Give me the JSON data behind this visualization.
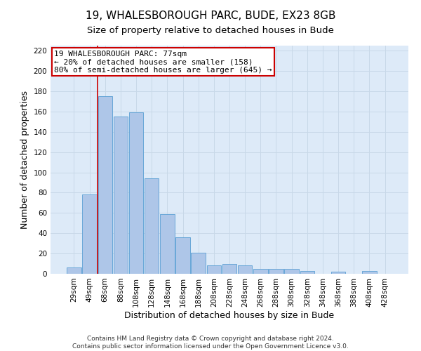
{
  "title1": "19, WHALESBOROUGH PARC, BUDE, EX23 8GB",
  "title2": "Size of property relative to detached houses in Bude",
  "xlabel": "Distribution of detached houses by size in Bude",
  "ylabel": "Number of detached properties",
  "footer1": "Contains HM Land Registry data © Crown copyright and database right 2024.",
  "footer2": "Contains public sector information licensed under the Open Government Licence v3.0.",
  "categories": [
    "29sqm",
    "49sqm",
    "68sqm",
    "88sqm",
    "108sqm",
    "128sqm",
    "148sqm",
    "168sqm",
    "188sqm",
    "208sqm",
    "228sqm",
    "248sqm",
    "268sqm",
    "288sqm",
    "308sqm",
    "328sqm",
    "348sqm",
    "368sqm",
    "388sqm",
    "408sqm",
    "428sqm"
  ],
  "values": [
    6,
    78,
    175,
    155,
    159,
    94,
    59,
    36,
    21,
    8,
    10,
    8,
    5,
    5,
    5,
    3,
    0,
    2,
    0,
    3,
    0
  ],
  "bar_color": "#aec6e8",
  "bar_edge_color": "#5a9fd4",
  "property_label": "19 WHALESBOROUGH PARC: 77sqm",
  "annotation_line1": "← 20% of detached houses are smaller (158)",
  "annotation_line2": "80% of semi-detached houses are larger (645) →",
  "vline_color": "#cc0000",
  "annotation_box_edge": "#cc0000",
  "annotation_box_face": "#ffffff",
  "vline_x": 1.5,
  "ylim": [
    0,
    225
  ],
  "yticks": [
    0,
    20,
    40,
    60,
    80,
    100,
    120,
    140,
    160,
    180,
    200,
    220
  ],
  "grid_color": "#c8d8e8",
  "bg_color": "#ddeaf8",
  "title1_fontsize": 11,
  "title2_fontsize": 9.5,
  "axis_label_fontsize": 9,
  "tick_fontsize": 7.5,
  "footer_fontsize": 6.5,
  "annotation_fontsize": 8
}
